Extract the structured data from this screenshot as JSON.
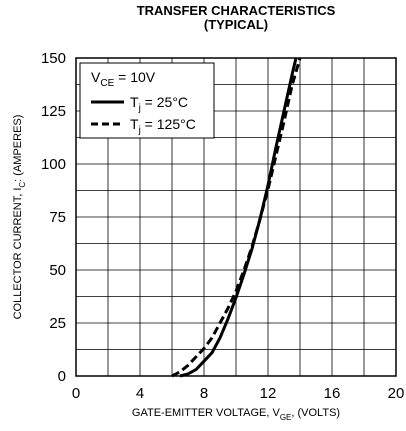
{
  "chart_data": {
    "type": "line",
    "title": "TRANSFER CHARACTERISTICS",
    "subtitle": "(TYPICAL)",
    "xlabel": {
      "main": "GATE-EMITTER VOLTAGE, V",
      "sub": "GE",
      "suffix": ", (VOLTS)"
    },
    "ylabel": {
      "main": "COLLECTOR CURRENT, I",
      "sub": "C",
      "suffix": ": (AMPERES)"
    },
    "xlim": [
      0,
      20
    ],
    "ylim": [
      0,
      150
    ],
    "xticks": [
      "0",
      "4",
      "8",
      "12",
      "16",
      "20"
    ],
    "yticks": [
      "0",
      "25",
      "50",
      "75",
      "100",
      "125",
      "150"
    ],
    "grid": true,
    "legend_position": "top-left",
    "condition": {
      "main": "V",
      "sub": "CE",
      "suffix": " = 10V"
    },
    "series": [
      {
        "name": {
          "main": "T",
          "sub": "j",
          "suffix": " = 25°C"
        },
        "dash": "solid",
        "points": [
          [
            6.5,
            0
          ],
          [
            7.0,
            1
          ],
          [
            7.5,
            3
          ],
          [
            8.0,
            7
          ],
          [
            8.5,
            11
          ],
          [
            9.0,
            18
          ],
          [
            9.5,
            27
          ],
          [
            10.0,
            37
          ],
          [
            10.5,
            48
          ],
          [
            11.0,
            60
          ],
          [
            11.5,
            74
          ],
          [
            12.0,
            90
          ],
          [
            12.5,
            108
          ],
          [
            13.0,
            125
          ],
          [
            13.5,
            142
          ],
          [
            13.75,
            150
          ]
        ]
      },
      {
        "name": {
          "main": "T",
          "sub": "j",
          "suffix": " = 125°C"
        },
        "dash": "dashed",
        "points": [
          [
            6.0,
            0
          ],
          [
            6.5,
            2
          ],
          [
            7.0,
            5
          ],
          [
            7.5,
            9
          ],
          [
            8.0,
            13
          ],
          [
            8.5,
            18
          ],
          [
            9.0,
            25
          ],
          [
            9.5,
            32
          ],
          [
            10.0,
            40
          ],
          [
            10.5,
            50
          ],
          [
            11.0,
            61
          ],
          [
            11.5,
            74
          ],
          [
            12.0,
            88
          ],
          [
            12.5,
            104
          ],
          [
            13.0,
            120
          ],
          [
            13.5,
            137
          ],
          [
            14.0,
            150
          ]
        ]
      }
    ]
  }
}
